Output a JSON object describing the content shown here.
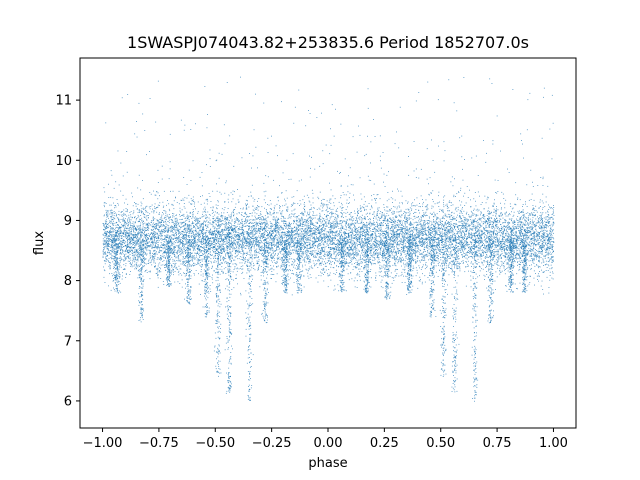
{
  "chart_data": {
    "type": "scatter",
    "title": "1SWASPJ074043.82+253835.6 Period 1852707.0s",
    "xlabel": "phase",
    "ylabel": "flux",
    "xlim": [
      -1.1,
      1.1
    ],
    "ylim": [
      5.55,
      11.7
    ],
    "x_ticks": [
      -1.0,
      -0.75,
      -0.5,
      -0.25,
      0.0,
      0.25,
      0.5,
      0.75,
      1.0
    ],
    "x_tick_labels": [
      "−1.00",
      "−0.75",
      "−0.50",
      "−0.25",
      "0.00",
      "0.25",
      "0.50",
      "0.75",
      "1.00"
    ],
    "y_ticks": [
      6,
      7,
      8,
      9,
      10,
      11
    ],
    "y_tick_labels": [
      "6",
      "7",
      "8",
      "9",
      "10",
      "11"
    ],
    "grid": false,
    "legend": "none",
    "point_color": "#1f77b4",
    "baseline_flux": 8.7,
    "baseline_spread": 0.28,
    "dips": [
      {
        "phase": -0.94,
        "min_flux": 7.8
      },
      {
        "phase": -0.83,
        "min_flux": 7.3
      },
      {
        "phase": -0.71,
        "min_flux": 7.9
      },
      {
        "phase": -0.62,
        "min_flux": 7.6
      },
      {
        "phase": -0.54,
        "min_flux": 7.4
      },
      {
        "phase": -0.49,
        "min_flux": 6.4
      },
      {
        "phase": -0.44,
        "min_flux": 6.1
      },
      {
        "phase": -0.35,
        "min_flux": 6.0
      },
      {
        "phase": -0.28,
        "min_flux": 7.3
      },
      {
        "phase": -0.19,
        "min_flux": 7.8
      },
      {
        "phase": -0.13,
        "min_flux": 7.8
      },
      {
        "phase": 0.06,
        "min_flux": 7.8
      },
      {
        "phase": 0.17,
        "min_flux": 7.8
      },
      {
        "phase": 0.26,
        "min_flux": 7.7
      },
      {
        "phase": 0.36,
        "min_flux": 7.8
      },
      {
        "phase": 0.46,
        "min_flux": 7.4
      },
      {
        "phase": 0.51,
        "min_flux": 6.4
      },
      {
        "phase": 0.56,
        "min_flux": 6.1
      },
      {
        "phase": 0.65,
        "min_flux": 6.0
      },
      {
        "phase": 0.72,
        "min_flux": 7.3
      },
      {
        "phase": 0.81,
        "min_flux": 7.8
      },
      {
        "phase": 0.87,
        "min_flux": 7.8
      }
    ],
    "point_count": 16000
  }
}
